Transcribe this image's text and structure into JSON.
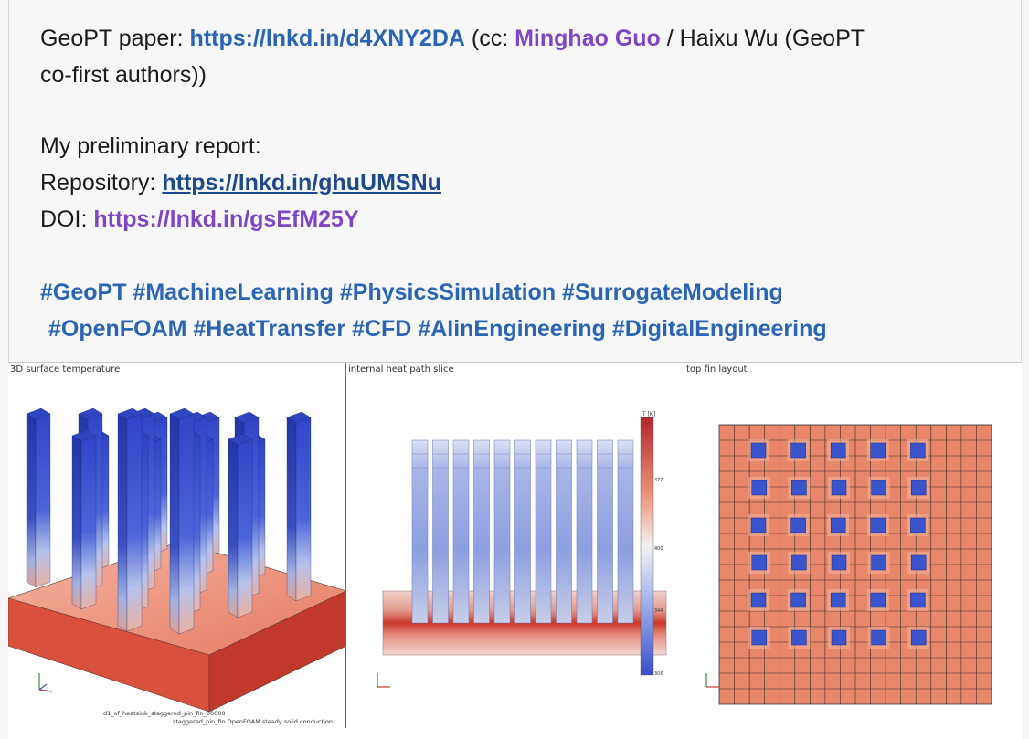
{
  "post": {
    "line1": {
      "prefix": "GeoPT paper: ",
      "paper_link": "https://lnkd.in/d4XNY2DA",
      "cc_open": " (cc: ",
      "author1": "Minghao Guo",
      "author2_text": " / Haixu Wu (GeoPT"
    },
    "line2": "co-first authors))",
    "report_label": "My preliminary report:",
    "repo_label": "Repository: ",
    "repo_link": "https://lnkd.in/ghuUMSNu",
    "doi_label": "DOI: ",
    "doi_link": "https://lnkd.in/gsEfM25Y",
    "hashtags_line1": [
      "#GeoPT",
      "#MachineLearning",
      "#PhysicsSimulation",
      "#SurrogateModeling"
    ],
    "hashtags_line2": [
      "#OpenFOAM",
      "#HeatTransfer",
      "#CFD",
      "#AIinEngineering",
      "#DigitalEngineering"
    ]
  },
  "figure": {
    "panel1_title": "3D surface temperature",
    "panel2_title": "internal heat path slice",
    "panel3_title": "top fin layout",
    "panel1_footer_line1": "d1_of_heatsink_staggered_pin_fin_00000",
    "panel1_footer_line2": "staggered_pin_fin  OpenFOAM steady solid conduction",
    "colorbar_labels": [
      "T [K]",
      "477",
      "400",
      "344",
      "306"
    ],
    "colors": {
      "hot": "#c0392b",
      "warm": "#e8836a",
      "cold": "#3a55cc",
      "mid": "#dcdfee"
    }
  }
}
